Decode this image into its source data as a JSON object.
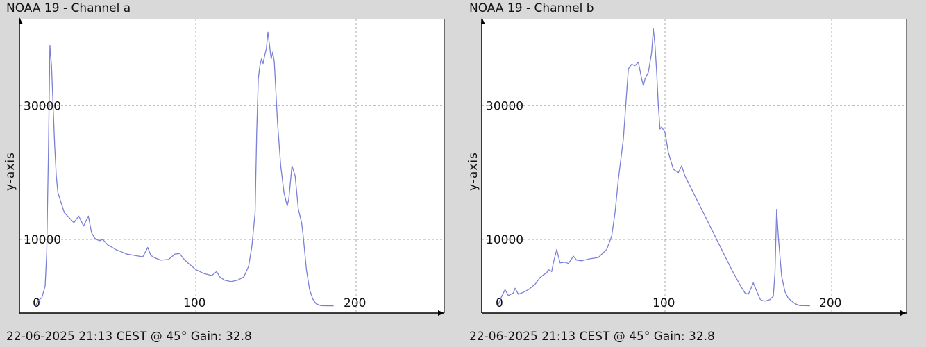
{
  "panels": [
    {
      "title": "NOAA 19 - Channel a",
      "footer": "22-06-2025 21:13 CEST @ 45° Gain: 32.8"
    },
    {
      "title": "NOAA 19 - Channel b",
      "footer": "22-06-2025 21:13 CEST @ 45° Gain: 32.8"
    }
  ],
  "colors": {
    "line": "#7b7fd6",
    "grid": "#aaaaaa",
    "axis": "#000000",
    "plot_bg": "#ffffff",
    "page_bg": "#d9d9d9"
  },
  "chart_data": [
    {
      "type": "line",
      "title": "NOAA 19 - Channel a",
      "xlabel": "",
      "ylabel": "y-axis",
      "xlim": [
        -10,
        255
      ],
      "ylim": [
        -1000,
        43000
      ],
      "xticks": [
        0,
        100,
        200
      ],
      "yticks": [
        10000,
        30000
      ],
      "x_tick_labels": [
        "0",
        "100",
        "200"
      ],
      "y_tick_labels": [
        "10000",
        "30000"
      ],
      "grid": true,
      "series": [
        {
          "x": [
            0,
            2,
            4,
            6,
            7,
            8,
            9,
            10,
            11,
            12,
            13,
            14,
            16,
            18,
            20,
            22,
            24,
            27,
            30,
            33,
            35,
            37,
            38,
            40,
            42,
            45,
            48,
            50,
            53,
            57,
            62,
            67,
            70,
            72,
            74,
            78,
            83,
            87,
            90,
            92,
            95,
            100,
            105,
            110,
            113,
            115,
            118,
            122,
            126,
            130,
            133,
            135,
            137,
            138,
            139,
            140,
            141,
            142,
            143,
            144,
            145,
            146,
            147,
            148,
            149,
            150,
            151,
            153,
            155,
            157,
            158,
            160,
            162,
            164,
            165,
            166,
            167,
            169,
            171,
            173,
            175,
            178,
            182,
            186
          ],
          "y": [
            100,
            900,
            1300,
            3000,
            8000,
            22000,
            39000,
            36000,
            30000,
            24000,
            19500,
            17000,
            15500,
            14000,
            13500,
            13000,
            12500,
            13500,
            12000,
            13500,
            11000,
            10200,
            10000,
            9800,
            10000,
            9200,
            8800,
            8500,
            8200,
            7800,
            7600,
            7400,
            8800,
            7600,
            7300,
            6900,
            7000,
            7800,
            7900,
            7200,
            6500,
            5500,
            4900,
            4600,
            5200,
            4400,
            3900,
            3700,
            3900,
            4400,
            6000,
            9000,
            14000,
            26000,
            34000,
            36000,
            37000,
            36300,
            37500,
            38500,
            41000,
            39000,
            37000,
            38000,
            36500,
            32000,
            27500,
            21000,
            17000,
            15000,
            16000,
            21000,
            19500,
            14500,
            13500,
            12500,
            10500,
            5500,
            2500,
            1100,
            400,
            100,
            80,
            80
          ]
        }
      ]
    },
    {
      "type": "line",
      "title": "NOAA 19 - Channel b",
      "xlabel": "",
      "ylabel": "y-axis",
      "xlim": [
        -10,
        245
      ],
      "ylim": [
        -1000,
        43000
      ],
      "xticks": [
        0,
        100,
        200
      ],
      "yticks": [
        10000,
        30000
      ],
      "x_tick_labels": [
        "0",
        "100",
        "200"
      ],
      "y_tick_labels": [
        "10000",
        "30000"
      ],
      "grid": true,
      "series": [
        {
          "x": [
            0,
            2,
            4,
            6,
            9,
            10,
            12,
            15,
            18,
            22,
            25,
            27,
            29,
            30,
            32,
            33,
            35,
            37,
            40,
            42,
            45,
            47,
            50,
            55,
            60,
            65,
            68,
            70,
            72,
            75,
            78,
            80,
            82,
            84,
            86,
            87,
            88,
            90,
            92,
            93,
            94,
            95,
            96,
            97,
            98,
            100,
            102,
            105,
            108,
            110,
            112,
            115,
            118,
            121,
            125,
            130,
            135,
            140,
            145,
            148,
            150,
            153,
            155,
            157,
            158,
            160,
            163,
            165,
            166,
            167,
            168,
            170,
            172,
            174,
            176,
            178,
            181,
            184,
            187
          ],
          "y": [
            300,
            1500,
            2500,
            1600,
            2000,
            2700,
            1800,
            2100,
            2500,
            3300,
            4300,
            4700,
            5000,
            5500,
            5200,
            6500,
            8500,
            6500,
            6600,
            6400,
            7500,
            6900,
            6800,
            7100,
            7300,
            8500,
            10500,
            14000,
            19000,
            25000,
            35500,
            36200,
            36000,
            36500,
            34000,
            33000,
            34000,
            35000,
            38000,
            41500,
            39000,
            35000,
            30000,
            26500,
            26800,
            26000,
            23000,
            20500,
            20000,
            21000,
            19500,
            18000,
            16500,
            15000,
            13000,
            10500,
            8000,
            5500,
            3200,
            2000,
            1800,
            3500,
            2300,
            1100,
            900,
            800,
            1000,
            1500,
            5000,
            14500,
            10500,
            4500,
            2200,
            1200,
            800,
            400,
            100,
            100,
            80
          ]
        }
      ]
    }
  ]
}
